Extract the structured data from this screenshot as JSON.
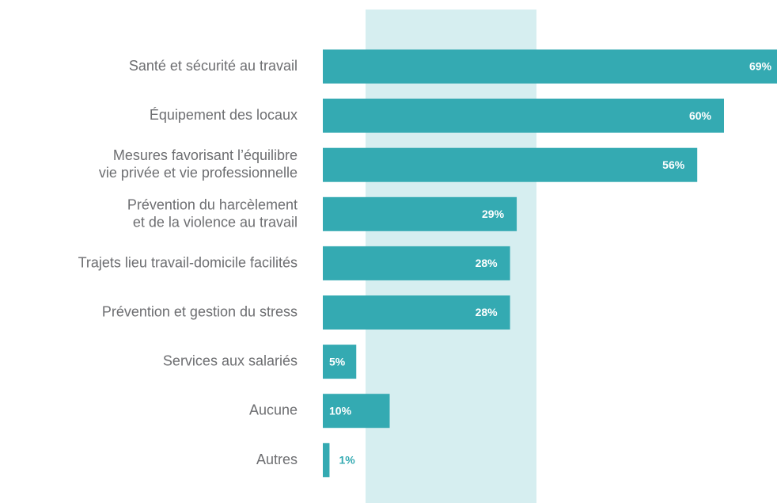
{
  "chart_data": {
    "type": "bar",
    "orientation": "horizontal",
    "categories": [
      "Santé et sécurité au travail",
      "Équipement des locaux",
      "Mesures favorisant l’équilibre\nvie privée et vie professionnelle",
      "Prévention du harcèlement\net de la violence au travail",
      "Trajets lieu travail-domicile facilités",
      "Prévention et gestion du stress",
      "Services aux salariés",
      "Aucune",
      "Autres"
    ],
    "values": [
      69,
      60,
      56,
      29,
      28,
      28,
      5,
      10,
      1
    ],
    "value_labels": [
      "69%",
      "60%",
      "56%",
      "29%",
      "28%",
      "28%",
      "5%",
      "10%",
      "1%"
    ],
    "color": "#34aab2"
  }
}
